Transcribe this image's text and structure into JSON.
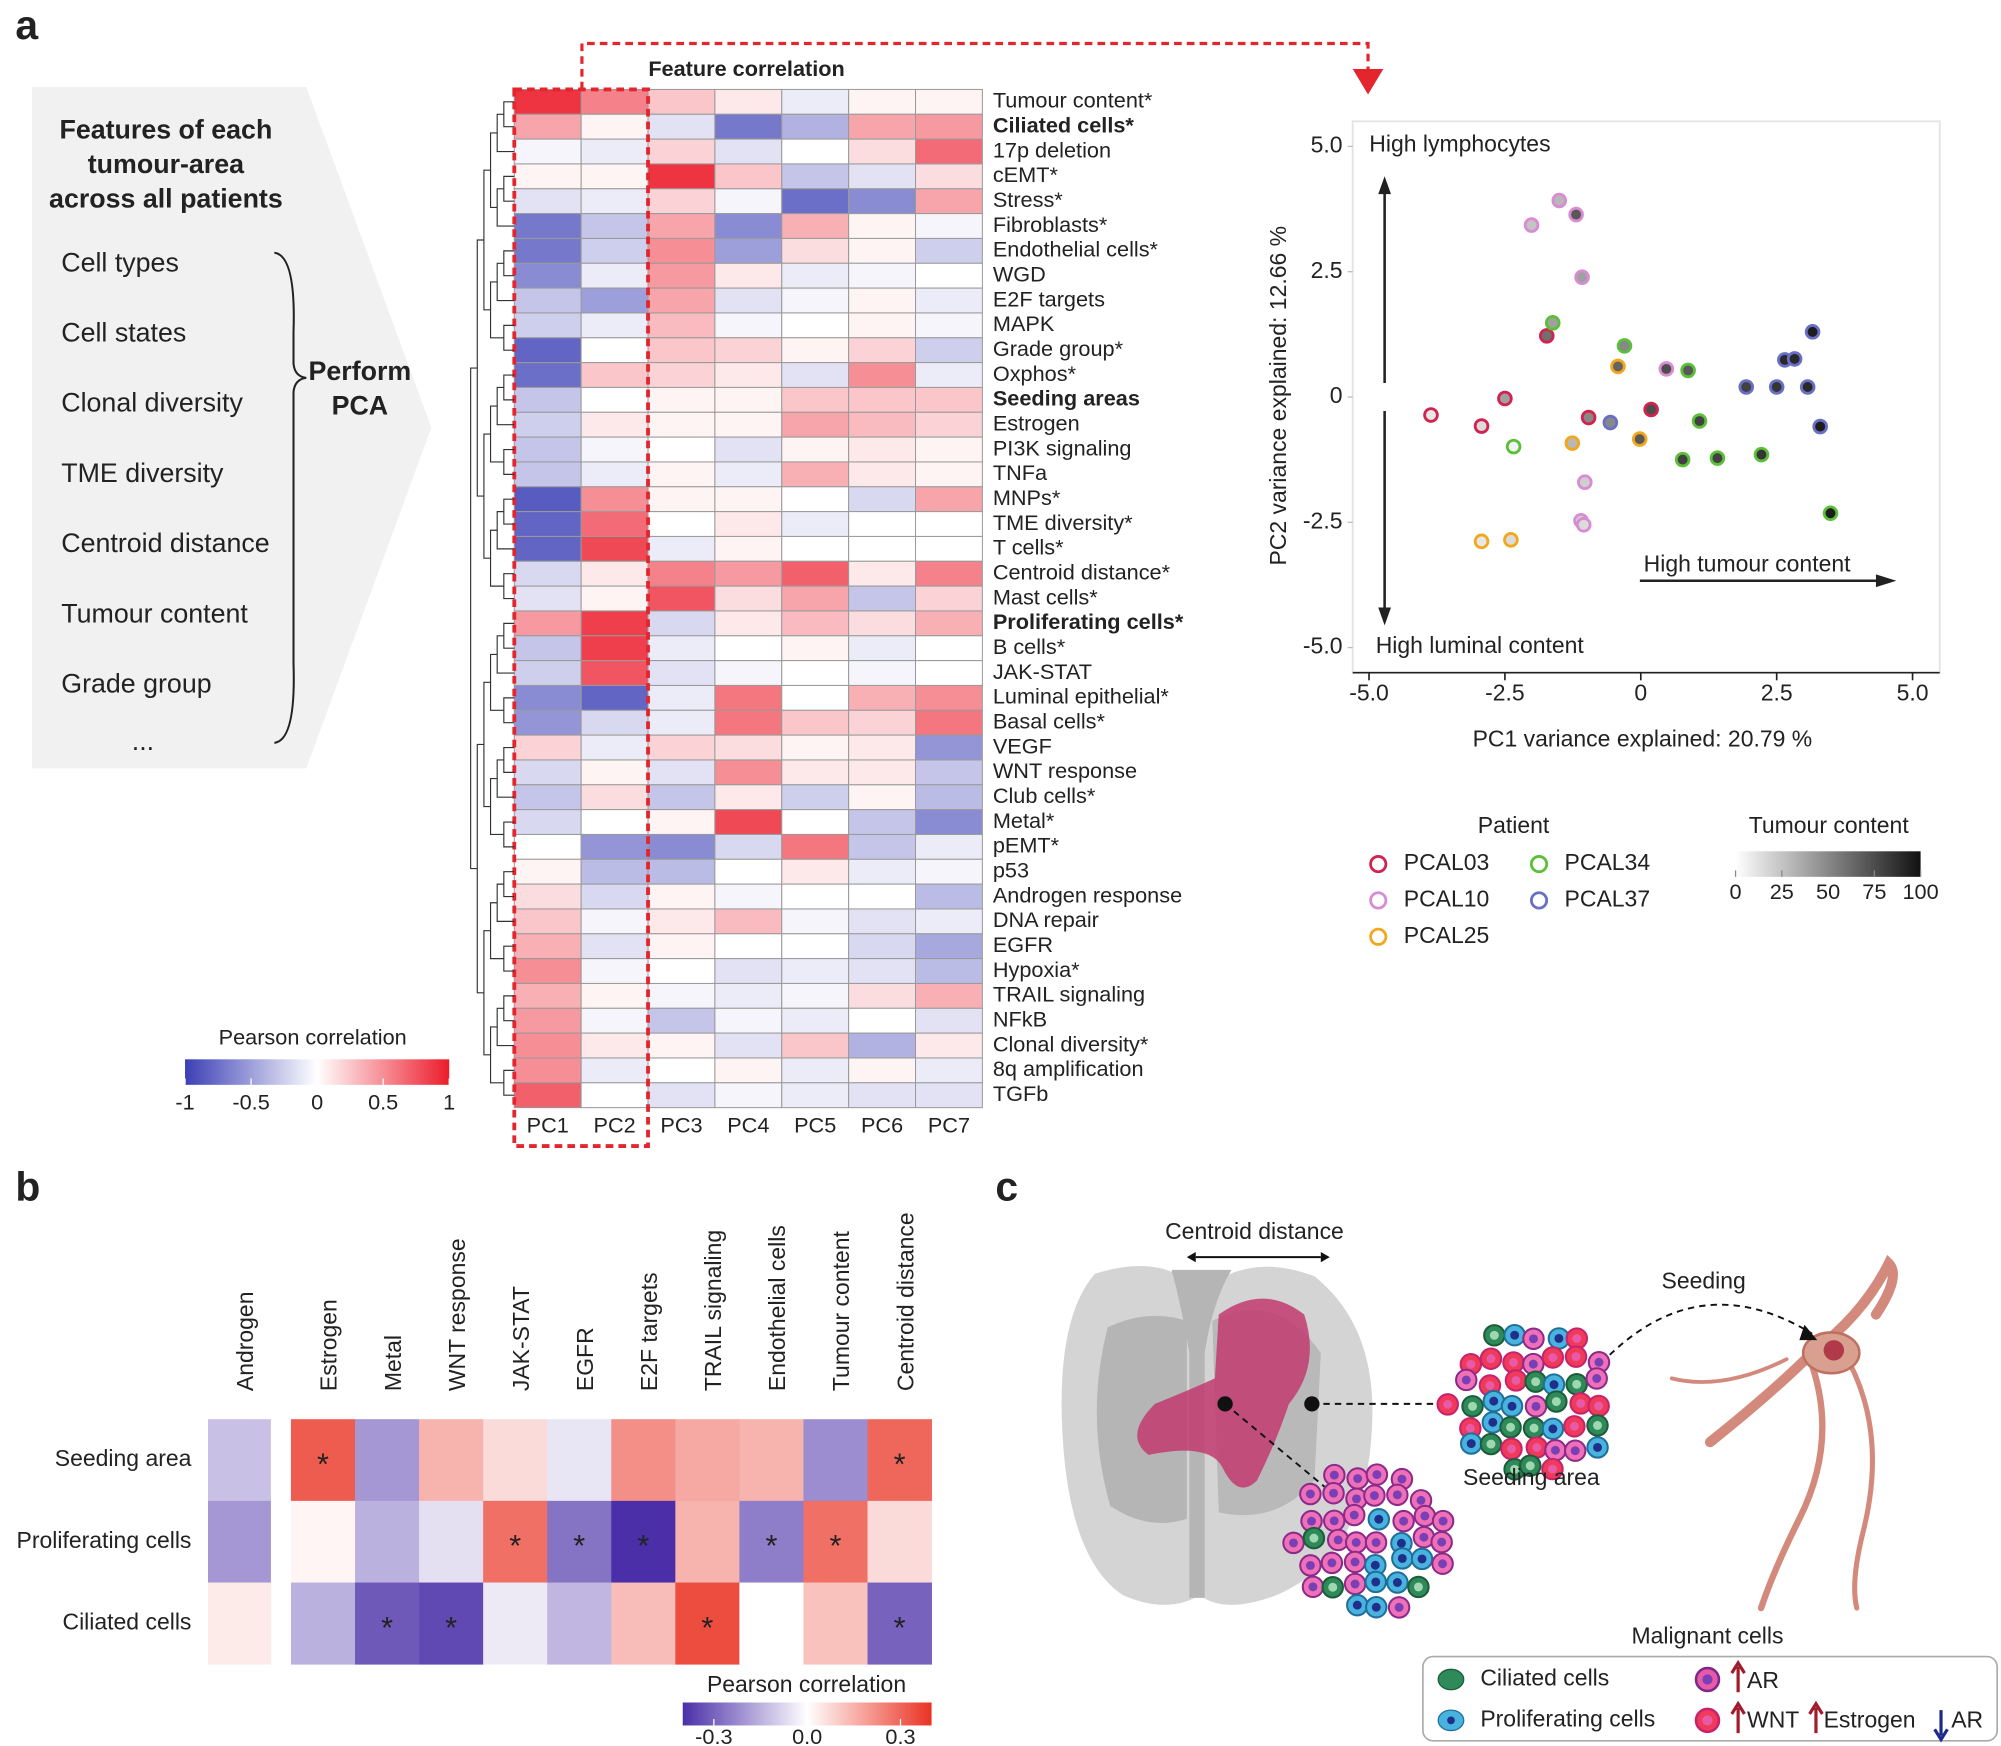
{
  "panel_labels": [
    "a",
    "b",
    "c"
  ],
  "features": {
    "title_lines": [
      "Features of each",
      "tumour-area",
      "across all patients"
    ],
    "items": [
      "Cell types",
      "Cell states",
      "Clonal diversity",
      "TME diversity",
      "Centroid distance",
      "Tumour content",
      "Grade group",
      "..."
    ],
    "action_lines": [
      "Perform",
      "PCA"
    ]
  },
  "chart_data": [
    {
      "type": "heatmap",
      "title": "Feature correlation",
      "columns": [
        "PC1",
        "PC2",
        "PC3",
        "PC4",
        "PC5",
        "PC6",
        "PC7"
      ],
      "rows": [
        "Tumour content*",
        "Ciliated cells*",
        "17p deletion",
        "cEMT*",
        "Stress*",
        "Fibroblasts*",
        "Endothelial cells*",
        "WGD",
        "E2F targets",
        "MAPK",
        "Grade group*",
        "Oxphos*",
        "Seeding areas",
        "Estrogen",
        "PI3K signaling",
        "TNFa",
        "MNPs*",
        "TME diversity*",
        "T cells*",
        "Centroid distance*",
        "Mast cells*",
        "Proliferating cells*",
        "B cells*",
        "JAK-STAT",
        "Luminal epithelial*",
        "Basal cells*",
        "VEGF",
        "WNT response",
        "Club cells*",
        "Metal*",
        "pEMT*",
        "p53",
        "Androgen response",
        "DNA repair",
        "EGFR",
        "Hypoxia*",
        "TRAIL signaling",
        "NFkB",
        "Clonal diversity*",
        "8q amplification",
        "TGFb"
      ],
      "values": [
        [
          0.9,
          0.55,
          0.25,
          0.1,
          -0.1,
          0.05,
          0.05
        ],
        [
          0.4,
          0.05,
          -0.15,
          -0.7,
          -0.4,
          0.4,
          0.45
        ],
        [
          -0.05,
          -0.1,
          0.2,
          -0.15,
          0,
          0.15,
          0.65
        ],
        [
          0.05,
          0.05,
          0.9,
          0.25,
          -0.3,
          -0.15,
          0.15
        ],
        [
          -0.15,
          -0.1,
          0.2,
          -0.05,
          -0.75,
          -0.6,
          0.4
        ],
        [
          -0.7,
          -0.3,
          0.4,
          -0.6,
          0.35,
          0.05,
          -0.05
        ],
        [
          -0.7,
          -0.25,
          0.5,
          -0.5,
          0.15,
          0.05,
          -0.25
        ],
        [
          -0.6,
          -0.1,
          0.45,
          0.1,
          -0.1,
          -0.05,
          0
        ],
        [
          -0.3,
          -0.5,
          0.4,
          -0.15,
          -0.05,
          0.05,
          -0.1
        ],
        [
          -0.25,
          -0.1,
          0.3,
          -0.05,
          0,
          0.05,
          -0.05
        ],
        [
          -0.8,
          0,
          0.25,
          0.2,
          0.05,
          0.2,
          -0.25
        ],
        [
          -0.75,
          0.25,
          0.2,
          0.1,
          -0.15,
          0.5,
          -0.1
        ],
        [
          -0.3,
          0,
          0.05,
          0.05,
          0.25,
          0.25,
          0.25
        ],
        [
          -0.25,
          0.1,
          0.05,
          0.05,
          0.4,
          0.3,
          0.2
        ],
        [
          -0.3,
          -0.05,
          0,
          -0.15,
          0.05,
          0.1,
          0.05
        ],
        [
          -0.3,
          -0.1,
          0.05,
          -0.1,
          0.35,
          0.1,
          0.05
        ],
        [
          -0.85,
          0.5,
          0.05,
          0.05,
          0,
          -0.2,
          0.4
        ],
        [
          -0.8,
          0.65,
          0,
          0.1,
          -0.1,
          0,
          0
        ],
        [
          -0.8,
          0.8,
          -0.1,
          0.05,
          0,
          0,
          0
        ],
        [
          -0.2,
          0.1,
          0.55,
          0.45,
          0.7,
          0.1,
          0.55
        ],
        [
          -0.15,
          0.05,
          0.75,
          0.15,
          0.4,
          -0.3,
          0.2
        ],
        [
          0.45,
          0.85,
          -0.2,
          0.1,
          0.3,
          0.15,
          0.35
        ],
        [
          -0.3,
          0.85,
          -0.1,
          0,
          0.05,
          -0.1,
          0
        ],
        [
          -0.25,
          0.75,
          -0.15,
          -0.05,
          0,
          -0.05,
          0
        ],
        [
          -0.6,
          -0.8,
          -0.1,
          0.6,
          0,
          0.35,
          0.5
        ],
        [
          -0.55,
          -0.2,
          -0.1,
          0.6,
          0.25,
          0.2,
          0.6
        ],
        [
          0.2,
          -0.1,
          0.2,
          0.15,
          0.05,
          0.1,
          -0.55
        ],
        [
          -0.2,
          0.05,
          -0.15,
          0.5,
          0.1,
          0.1,
          -0.3
        ],
        [
          -0.3,
          0.15,
          -0.3,
          0.1,
          -0.25,
          0.05,
          -0.35
        ],
        [
          -0.2,
          0,
          0.05,
          0.8,
          0,
          -0.3,
          -0.6
        ],
        [
          0,
          -0.55,
          -0.6,
          -0.2,
          0.6,
          -0.3,
          -0.1
        ],
        [
          0.05,
          -0.35,
          -0.35,
          0,
          0.1,
          -0.1,
          -0.05
        ],
        [
          0.15,
          -0.2,
          0.05,
          -0.05,
          0,
          0,
          -0.35
        ],
        [
          0.25,
          -0.05,
          0.1,
          0.3,
          -0.05,
          -0.15,
          -0.1
        ],
        [
          0.35,
          -0.15,
          0.05,
          0,
          0,
          -0.2,
          -0.45
        ],
        [
          0.5,
          -0.05,
          0,
          -0.15,
          -0.1,
          -0.15,
          -0.35
        ],
        [
          0.35,
          0.05,
          -0.05,
          -0.1,
          -0.05,
          0.15,
          0.35
        ],
        [
          0.45,
          -0.05,
          -0.3,
          -0.05,
          -0.1,
          0,
          -0.15
        ],
        [
          0.5,
          0.1,
          0.05,
          -0.15,
          0.25,
          -0.4,
          0.1
        ],
        [
          0.5,
          -0.1,
          0,
          0.05,
          -0.1,
          0.05,
          -0.1
        ],
        [
          0.7,
          0,
          -0.15,
          -0.05,
          -0.1,
          -0.15,
          -0.15
        ]
      ],
      "highlight_rows": [
        1,
        12,
        21
      ],
      "highlight_color": "#a3282e",
      "clim": [
        -1,
        1
      ],
      "cticks": [
        -1,
        -0.5,
        0,
        0.5,
        1
      ],
      "colorbar_title": "Pearson correlation",
      "colors": {
        "low": "#3b3fb5",
        "mid": "#ffffff",
        "high": "#ec1c2c"
      },
      "selection_color": "#e3262e"
    },
    {
      "type": "scatter",
      "xlabel": "PC1 variance explained: 20.79 %",
      "ylabel": "PC2 variance explained: 12.66 %",
      "annotations": [
        "High lymphocytes",
        "High luminal content",
        "High tumour content"
      ],
      "xlim": [
        -5.3,
        5.5
      ],
      "ylim": [
        -5.5,
        5.5
      ],
      "xticks": [
        {
          "value": -5,
          "label": "-5.0"
        },
        -2.5,
        0,
        2.5,
        {
          "value": 5,
          "label": "5.0"
        }
      ],
      "yticks": [
        {
          "value": -5,
          "label": "-5.0"
        },
        -2.5,
        0,
        2.5,
        {
          "value": 5,
          "label": "5.0"
        }
      ],
      "legend_title": "Patient",
      "series": [
        {
          "name": "PCAL03",
          "color": "#d2234f",
          "x": [
            -3.86,
            -2.93,
            -2.5,
            -1.73,
            -0.96,
            0.19
          ],
          "y": [
            -0.36,
            -0.58,
            -0.03,
            1.22,
            -0.41,
            -0.25
          ],
          "tumour_content": [
            10,
            15,
            40,
            60,
            50,
            75
          ]
        },
        {
          "name": "PCAL10",
          "color": "#d98bd4",
          "x": [
            -2.01,
            -1.5,
            -1.19,
            -1.08,
            -1.03,
            -1.1,
            -1.05,
            0.47
          ],
          "y": [
            3.43,
            3.92,
            3.64,
            2.39,
            -1.7,
            -2.47,
            -2.55,
            0.56
          ],
          "tumour_content": [
            25,
            30,
            70,
            40,
            20,
            20,
            15,
            75
          ]
        },
        {
          "name": "PCAL25",
          "color": "#f2a81d",
          "x": [
            -2.93,
            -2.39,
            -1.26,
            -0.42,
            -0.02
          ],
          "y": [
            -2.88,
            -2.85,
            -0.92,
            0.61,
            -0.84
          ],
          "tumour_content": [
            10,
            15,
            30,
            65,
            70
          ]
        },
        {
          "name": "PCAL34",
          "color": "#5cbf3a",
          "x": [
            -2.34,
            -1.62,
            -0.3,
            0.87,
            0.77,
            1.08,
            1.41,
            2.22,
            3.49
          ],
          "y": [
            -0.99,
            1.48,
            1.02,
            0.53,
            -1.25,
            -0.48,
            -1.22,
            -1.15,
            -2.32
          ],
          "tumour_content": [
            5,
            40,
            50,
            70,
            80,
            80,
            80,
            85,
            95
          ]
        },
        {
          "name": "PCAL37",
          "color": "#6a6fc6",
          "x": [
            -0.56,
            1.94,
            2.5,
            2.65,
            2.83,
            3.07,
            3.16,
            3.3
          ],
          "y": [
            -0.51,
            0.2,
            0.2,
            0.74,
            0.76,
            0.2,
            1.3,
            -0.59
          ],
          "tumour_content": [
            50,
            80,
            85,
            90,
            90,
            90,
            95,
            95
          ]
        }
      ],
      "fill_title": "Tumour content",
      "fill_lim": [
        0,
        100
      ],
      "fill_ticks": [
        0,
        25,
        50,
        75,
        100
      ],
      "fill_colors": {
        "low": "#ffffff",
        "high": "#111111"
      }
    },
    {
      "type": "heatmap",
      "rows": [
        "Seeding area",
        "Proliferating cells",
        "Ciliated cells"
      ],
      "columns": [
        "Androgen",
        "Estrogen",
        "Metal",
        "WNT response",
        "JAK-STAT",
        "EGFR",
        "E2F targets",
        "TRAIL signaling",
        "Endothelial cells",
        "Tumour content",
        "Centroid distance"
      ],
      "values": [
        [
          -0.12,
          0.32,
          -0.2,
          0.15,
          0.07,
          -0.05,
          0.22,
          0.17,
          0.15,
          -0.22,
          0.3
        ],
        [
          -0.2,
          0.02,
          -0.15,
          -0.06,
          0.28,
          -0.27,
          -0.4,
          0.15,
          -0.25,
          0.28,
          0.07
        ],
        [
          0.04,
          -0.15,
          -0.32,
          -0.35,
          -0.04,
          -0.14,
          0.13,
          0.35,
          0,
          0.12,
          -0.3
        ]
      ],
      "stars": [
        [
          null,
          "*",
          null,
          null,
          null,
          null,
          null,
          null,
          null,
          null,
          "*"
        ],
        [
          null,
          null,
          null,
          null,
          "*",
          "*",
          "*",
          null,
          "*",
          "*",
          null
        ],
        [
          null,
          null,
          "*",
          "*",
          null,
          null,
          null,
          "*",
          null,
          null,
          "*"
        ]
      ],
      "clim": [
        -0.4,
        0.4
      ],
      "cticks": [
        -0.3,
        {
          "value": 0,
          "label": "0.0"
        },
        0.3
      ],
      "colorbar_title": "Pearson correlation",
      "colors": {
        "low": "#4a2fa8",
        "mid": "#ffffff",
        "high": "#ea3323"
      }
    }
  ],
  "illustration": {
    "centroid_label": "Centroid distance",
    "seeding_label": "Seeding",
    "seeding_area_label": "Seeding area",
    "legend_title": "Malignant cells",
    "legend": [
      "Ciliated cells",
      "Proliferating cells",
      "AR",
      "WNT",
      "Estrogen",
      "AR"
    ]
  }
}
